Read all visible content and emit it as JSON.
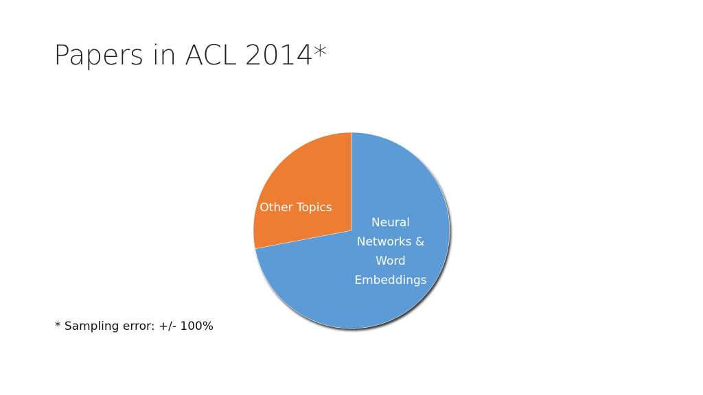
{
  "chart_data": {
    "type": "pie",
    "title": "Papers in ACL 2014*",
    "categories": [
      "Neural Networks & Word Embeddings",
      "Other Topics"
    ],
    "values": [
      72,
      28
    ],
    "colors": [
      "#5b9bd5",
      "#ed7d31"
    ],
    "footnote": "* Sampling error: +/- 100%"
  }
}
